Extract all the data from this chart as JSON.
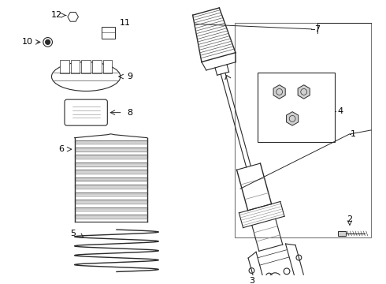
{
  "bg_color": "#ffffff",
  "line_color": "#2a2a2a",
  "gray_color": "#888888",
  "light_gray": "#d0d0d0",
  "dark_gray": "#555555",
  "fig_width": 4.9,
  "fig_height": 3.6,
  "dpi": 100
}
